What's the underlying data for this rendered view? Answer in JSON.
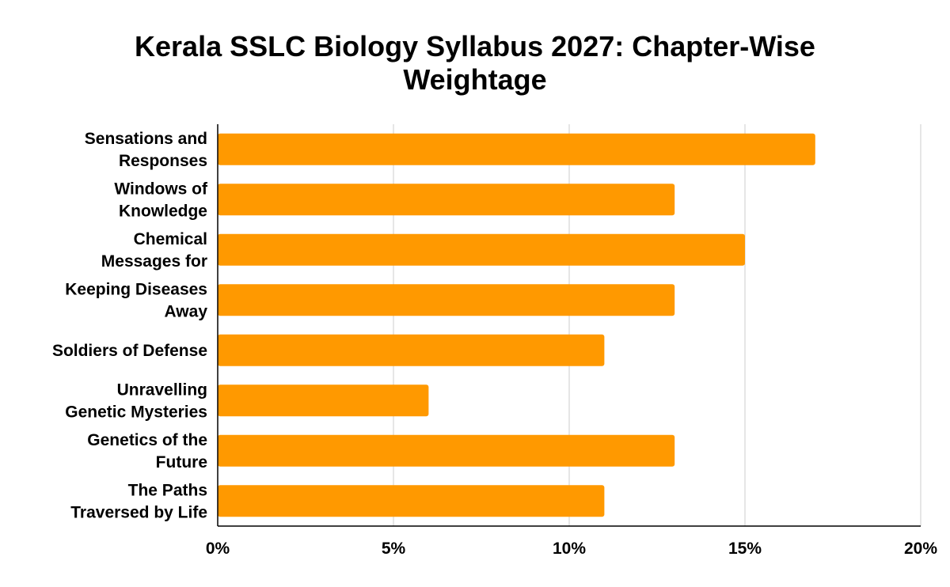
{
  "chart_data": {
    "type": "bar",
    "orientation": "horizontal",
    "title": "Kerala SSLC Biology Syllabus 2027: Chapter-Wise Weightage",
    "categories": [
      [
        "Sensations and",
        "Responses"
      ],
      [
        "Windows of",
        "Knowledge"
      ],
      [
        "Chemical",
        "Messages for"
      ],
      [
        "Keeping Diseases",
        "Away"
      ],
      [
        "Soldiers of Defense"
      ],
      [
        "Unravelling",
        "Genetic Mysteries"
      ],
      [
        "Genetics of the",
        "Future"
      ],
      [
        "The Paths",
        "Traversed by Life"
      ]
    ],
    "values": [
      17,
      13,
      15,
      13,
      11,
      6,
      13,
      11
    ],
    "value_unit": "%",
    "xlim": [
      0,
      20
    ],
    "xticks": [
      0,
      5,
      10,
      15,
      20
    ],
    "xtick_labels": [
      "0%",
      "5%",
      "10%",
      "15%",
      "20%"
    ],
    "xlabel": "",
    "ylabel": "",
    "grid": "vertical",
    "legend": "none",
    "bar_color": "#ff9900",
    "grid_color": "#cccccc",
    "axis_color": "#000000"
  }
}
